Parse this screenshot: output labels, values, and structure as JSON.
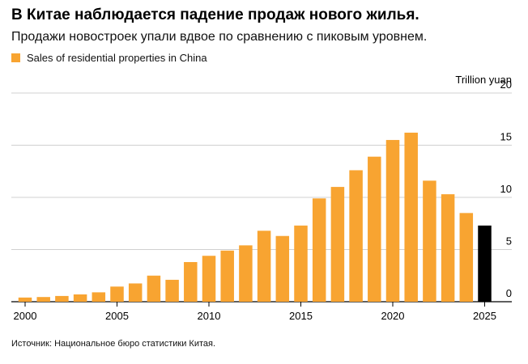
{
  "title": "В Китае наблюдается падение продаж нового жилья.",
  "subtitle": "Продажи новостроек упали вдвое по сравнению с пиковым уровнем.",
  "source": "Источник: Национальное бюро статистики Китая.",
  "colors": {
    "bar": "#f8a431",
    "highlight": "#000000",
    "grid": "#d0d0d0",
    "axis": "#000000"
  },
  "chart_data": {
    "type": "bar",
    "x": [
      2000,
      2001,
      2002,
      2003,
      2004,
      2005,
      2006,
      2007,
      2008,
      2009,
      2010,
      2011,
      2012,
      2013,
      2014,
      2015,
      2016,
      2017,
      2018,
      2019,
      2020,
      2021,
      2022,
      2023,
      2024,
      2025
    ],
    "series": [
      {
        "name": "Sales of residential properties in China",
        "values": [
          0.4,
          0.45,
          0.55,
          0.7,
          0.9,
          1.45,
          1.75,
          2.5,
          2.1,
          3.8,
          4.4,
          4.9,
          5.4,
          6.8,
          6.3,
          7.3,
          9.9,
          11.0,
          12.6,
          13.9,
          15.5,
          16.2,
          11.6,
          10.3,
          8.5,
          7.3
        ]
      }
    ],
    "highlight_last": true,
    "ylabel": "Trillion yuan",
    "ylim": [
      0,
      20
    ],
    "yticks": [
      0,
      5,
      10,
      15,
      20
    ],
    "xticks": [
      2000,
      2005,
      2010,
      2015,
      2020,
      2025
    ],
    "grid": true,
    "legend": "top-left"
  }
}
